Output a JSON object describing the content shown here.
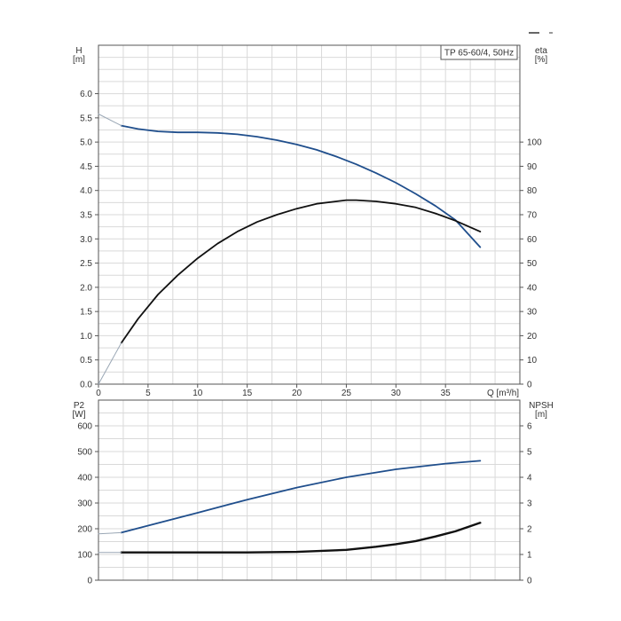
{
  "chart_data": [
    {
      "type": "line",
      "title": "TP 65-60/4, 50Hz",
      "xlabel": "Q [m³/h]",
      "xlim": [
        0,
        42.5
      ],
      "xticks": [
        0,
        5,
        10,
        15,
        20,
        25,
        30,
        35
      ],
      "ylabel_left": [
        "H",
        "[m]"
      ],
      "ylim_left": [
        0,
        7
      ],
      "yticks_left": [
        "0.0",
        "0.5",
        "1.0",
        "1.5",
        "2.0",
        "2.5",
        "3.0",
        "3.5",
        "4.0",
        "4.5",
        "5.0",
        "5.5",
        "6.0"
      ],
      "ylabel_right": [
        "eta",
        "[%]"
      ],
      "ylim_right": [
        0,
        140
      ],
      "yticks_right": [
        "0",
        "10",
        "20",
        "30",
        "40",
        "50",
        "60",
        "70",
        "80",
        "90",
        "100"
      ],
      "grid": true,
      "series": [
        {
          "axis": "left",
          "color": "#1f4e8c",
          "x": [
            2.3,
            4,
            6,
            8,
            10,
            12,
            14,
            16,
            18,
            20,
            22,
            24,
            26,
            28,
            30,
            32,
            34,
            36,
            38.5
          ],
          "y": [
            5.34,
            5.27,
            5.22,
            5.2,
            5.2,
            5.19,
            5.16,
            5.11,
            5.04,
            4.95,
            4.84,
            4.7,
            4.54,
            4.36,
            4.16,
            3.93,
            3.68,
            3.39,
            2.83
          ]
        },
        {
          "axis": "left",
          "color": "#9aa7b5",
          "x": [
            0,
            2.3
          ],
          "y": [
            5.58,
            5.34
          ]
        },
        {
          "axis": "right",
          "color": "#111111",
          "x": [
            2.3,
            4,
            6,
            8,
            10,
            12,
            14,
            16,
            18,
            20,
            22,
            24,
            25,
            26,
            28,
            30,
            32,
            34,
            36,
            38.5
          ],
          "y": [
            17,
            27,
            37,
            45,
            52,
            58,
            63,
            67,
            70,
            72.5,
            74.5,
            75.5,
            76,
            76,
            75.5,
            74.5,
            73,
            70.5,
            67.5,
            63
          ]
        },
        {
          "axis": "right",
          "color": "#9aa7b5",
          "x": [
            0,
            2.3
          ],
          "y": [
            0,
            17
          ]
        }
      ]
    },
    {
      "type": "line",
      "xlim": [
        0,
        42.5
      ],
      "ylabel_left": [
        "P2",
        "[W]"
      ],
      "ylim_left": [
        0,
        700
      ],
      "yticks_left": [
        "0",
        "100",
        "200",
        "300",
        "400",
        "500",
        "600"
      ],
      "ylabel_right": [
        "NPSH",
        "[m]"
      ],
      "ylim_right": [
        0,
        7
      ],
      "yticks_right": [
        "0",
        "1",
        "2",
        "3",
        "4",
        "5",
        "6"
      ],
      "grid": true,
      "series": [
        {
          "axis": "left",
          "color": "#1f4e8c",
          "x": [
            2.3,
            5,
            10,
            15,
            20,
            25,
            30,
            35,
            38.5
          ],
          "y": [
            185,
            212,
            262,
            313,
            360,
            400,
            431,
            453,
            464
          ]
        },
        {
          "axis": "left",
          "color": "#9aa7b5",
          "x": [
            0,
            2.3
          ],
          "y": [
            180,
            185
          ]
        },
        {
          "axis": "right",
          "color": "#111111",
          "x": [
            2.3,
            10,
            15,
            20,
            25,
            28,
            30,
            32,
            34,
            36,
            38.5
          ],
          "y": [
            1.08,
            1.08,
            1.08,
            1.1,
            1.18,
            1.3,
            1.4,
            1.52,
            1.7,
            1.9,
            2.23
          ]
        },
        {
          "axis": "right",
          "color": "#9aa7b5",
          "x": [
            0,
            2.3
          ],
          "y": [
            1.08,
            1.08
          ]
        }
      ]
    }
  ]
}
